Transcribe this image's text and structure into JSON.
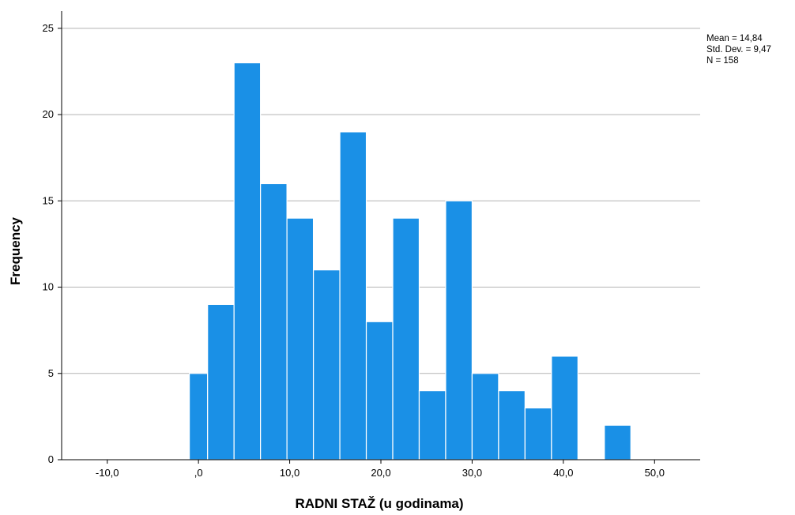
{
  "chart_data": {
    "type": "bar",
    "subtype": "histogram",
    "xlabel": "RADNI STAŽ (u godinama)",
    "ylabel": "Frequency",
    "xlim": [
      -15,
      55
    ],
    "ylim": [
      0,
      26
    ],
    "x_ticks": [
      {
        "value": -10,
        "label": "-10,0"
      },
      {
        "value": 0,
        "label": ",0"
      },
      {
        "value": 10,
        "label": "10,0"
      },
      {
        "value": 20,
        "label": "20,0"
      },
      {
        "value": 30,
        "label": "30,0"
      },
      {
        "value": 40,
        "label": "40,0"
      },
      {
        "value": 50,
        "label": "50,0"
      }
    ],
    "y_ticks": [
      {
        "value": 0,
        "label": "0"
      },
      {
        "value": 5,
        "label": "5"
      },
      {
        "value": 10,
        "label": "10"
      },
      {
        "value": 15,
        "label": "15"
      },
      {
        "value": 20,
        "label": "20"
      },
      {
        "value": 25,
        "label": "25"
      }
    ],
    "bins": [
      {
        "start": -1.0,
        "end": 1.0,
        "count": 5
      },
      {
        "start": 1.0,
        "end": 3.9,
        "count": 9
      },
      {
        "start": 3.9,
        "end": 6.8,
        "count": 23
      },
      {
        "start": 6.8,
        "end": 9.7,
        "count": 16
      },
      {
        "start": 9.7,
        "end": 12.6,
        "count": 14
      },
      {
        "start": 12.6,
        "end": 15.5,
        "count": 11
      },
      {
        "start": 15.5,
        "end": 18.4,
        "count": 19
      },
      {
        "start": 18.4,
        "end": 21.3,
        "count": 8
      },
      {
        "start": 21.3,
        "end": 24.2,
        "count": 14
      },
      {
        "start": 24.2,
        "end": 27.1,
        "count": 4
      },
      {
        "start": 27.1,
        "end": 30.0,
        "count": 15
      },
      {
        "start": 30.0,
        "end": 32.9,
        "count": 5
      },
      {
        "start": 32.9,
        "end": 35.8,
        "count": 4
      },
      {
        "start": 35.8,
        "end": 38.7,
        "count": 3
      },
      {
        "start": 38.7,
        "end": 41.6,
        "count": 6
      },
      {
        "start": 41.6,
        "end": 44.5,
        "count": 0
      },
      {
        "start": 44.5,
        "end": 47.4,
        "count": 2
      }
    ],
    "grid": "horizontal",
    "bar_color": "#1a90e6",
    "bar_edge_color": "#ffffff",
    "stats": {
      "mean": "Mean = 14,84",
      "std_dev": "Std. Dev. = 9,47",
      "n": "N = 158"
    }
  }
}
